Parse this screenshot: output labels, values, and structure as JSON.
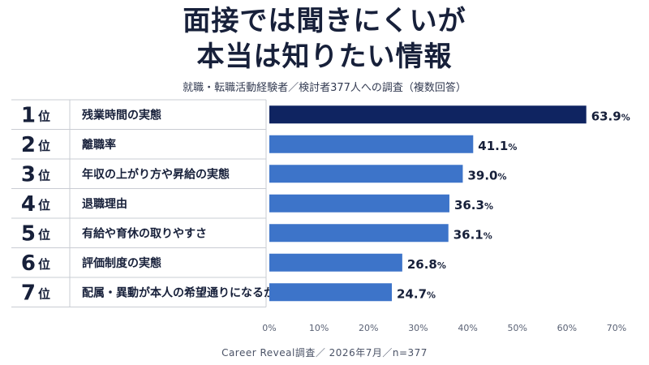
{
  "header": {
    "title_line1": "面接では聞きにくいが",
    "title_line2": "本当は知りたい情報",
    "subtitle": "就職・転職活動経験者／検討者377人への調査（複数回答）"
  },
  "footer": {
    "source": "Career Reveal調査／ 2026年7月／n=377"
  },
  "colors": {
    "top_bar": "#0f2461",
    "bar": "#3d74c9",
    "text": "#17203a"
  },
  "chart_data": {
    "type": "bar",
    "orientation": "horizontal",
    "rank_unit": "位",
    "ranks": [
      "1",
      "2",
      "3",
      "4",
      "5",
      "6",
      "7"
    ],
    "categories": [
      "残業時間の実態",
      "離職率",
      "年収の上がり方や昇給の実態",
      "退職理由",
      "有給や育休の取りやすさ",
      "評価制度の実態",
      "配属・異動が本人の希望通りになるか"
    ],
    "values": [
      63.9,
      41.1,
      39.0,
      36.3,
      36.1,
      26.8,
      24.7
    ],
    "value_labels": [
      "63.9",
      "41.1",
      "39.0",
      "36.3",
      "36.1",
      "26.8",
      "24.7"
    ],
    "value_unit": "%",
    "xlim": [
      0,
      70
    ],
    "xticks": [
      "0%",
      "10%",
      "20%",
      "30%",
      "40%",
      "50%",
      "60%",
      "70%"
    ],
    "highlight_first": true,
    "grid": false
  }
}
